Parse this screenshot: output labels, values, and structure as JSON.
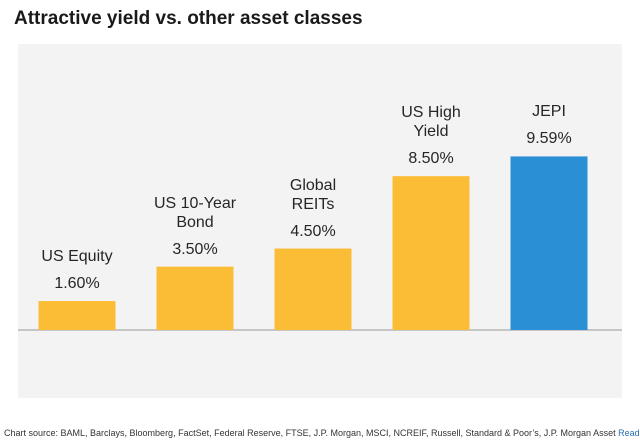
{
  "chart_data": {
    "type": "bar",
    "title": "Attractive yield vs. other asset classes",
    "categories": [
      "US Equity",
      "US 10-Year Bond",
      "Global REITs",
      "US High Yield",
      "JEPI"
    ],
    "values": [
      1.6,
      3.5,
      4.5,
      8.5,
      9.59
    ],
    "value_labels": [
      "1.60%",
      "3.50%",
      "4.50%",
      "8.50%",
      "9.59%"
    ],
    "colors": [
      "#fbbd35",
      "#fbbd35",
      "#fbbd35",
      "#fbbd35",
      "#2a8fd4"
    ],
    "source": "Chart source: BAML, Barclays, Bloomberg, FactSet, Federal Reserve, FTSE, J.P. Morgan, MSCI, NCREIF, Russell, Standard & Poor’s, J.P. Morgan Asset",
    "link": "Read more"
  }
}
